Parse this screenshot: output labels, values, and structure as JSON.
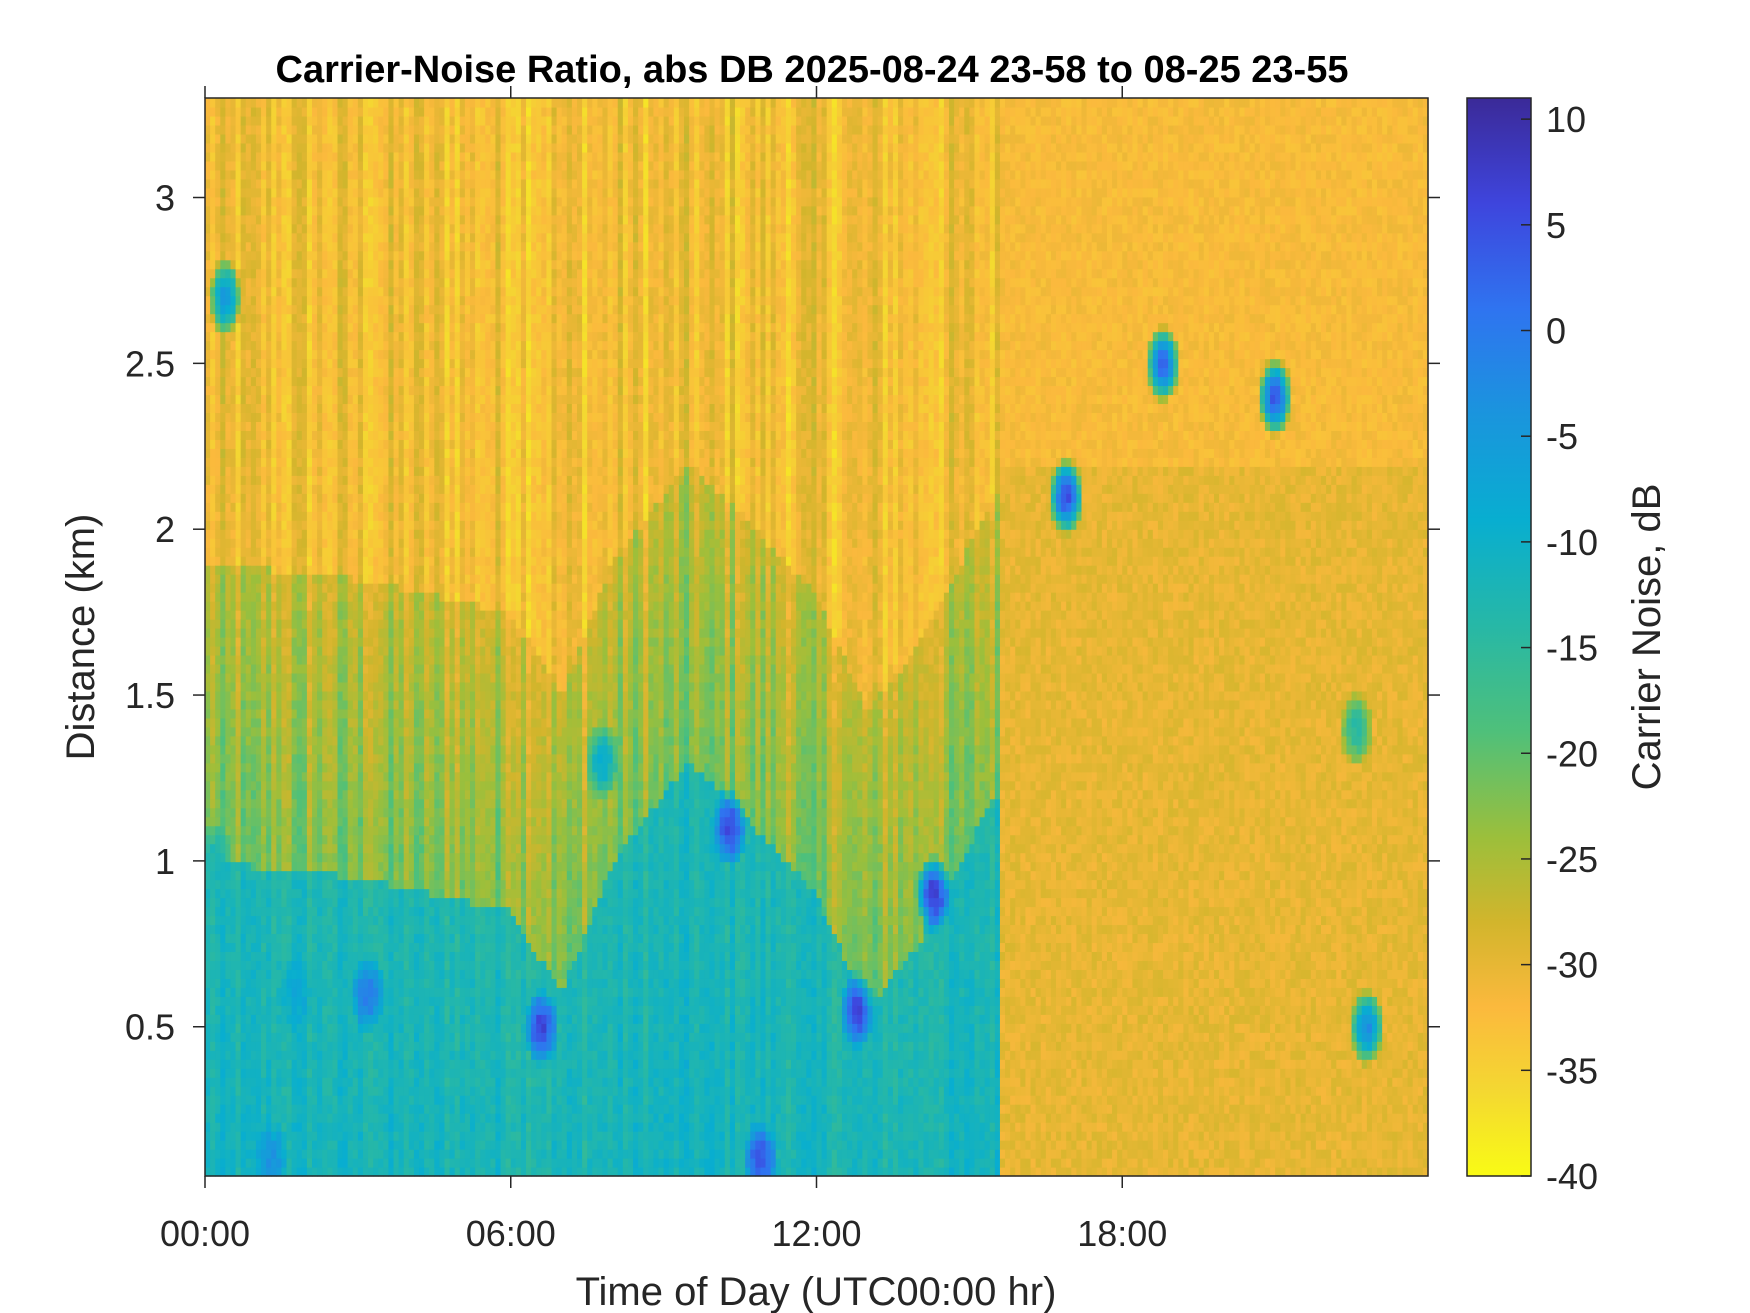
{
  "chart_data": {
    "type": "heatmap",
    "title": "Carrier-Noise Ratio, abs DB 2025-08-24 23-58 to 08-25 23-55",
    "xlabel": "Time of Day (UTC00:00 hr)",
    "ylabel": "Distance (km)",
    "xlim_hours": [
      0,
      24
    ],
    "ylim_km": [
      0.05,
      3.3
    ],
    "x_ticks": [
      {
        "hours": 0,
        "label": "00:00"
      },
      {
        "hours": 6,
        "label": "06:00"
      },
      {
        "hours": 12,
        "label": "12:00"
      },
      {
        "hours": 18,
        "label": "18:00"
      }
    ],
    "y_ticks": [
      {
        "km": 0.5,
        "label": "0.5"
      },
      {
        "km": 1,
        "label": "1"
      },
      {
        "km": 1.5,
        "label": "1.5"
      },
      {
        "km": 2,
        "label": "2"
      },
      {
        "km": 2.5,
        "label": "2.5"
      },
      {
        "km": 3,
        "label": "3"
      }
    ],
    "colorbar": {
      "label": "Carrier Noise, dB",
      "range": [
        -40,
        11
      ],
      "ticks": [
        {
          "value": 10,
          "label": "10"
        },
        {
          "value": 5,
          "label": "5"
        },
        {
          "value": 0,
          "label": "0"
        },
        {
          "value": -5,
          "label": "-5"
        },
        {
          "value": -10,
          "label": "-10"
        },
        {
          "value": -15,
          "label": "-15"
        },
        {
          "value": -20,
          "label": "-20"
        },
        {
          "value": -25,
          "label": "-25"
        },
        {
          "value": -30,
          "label": "-30"
        },
        {
          "value": -35,
          "label": "-35"
        },
        {
          "value": -40,
          "label": "-40"
        }
      ],
      "colormap": "parula-reversed",
      "stops": [
        {
          "value": 11,
          "color": "#3b2a98"
        },
        {
          "value": 6,
          "color": "#3e45dd"
        },
        {
          "value": 1,
          "color": "#2f74f0"
        },
        {
          "value": -4,
          "color": "#1a95dd"
        },
        {
          "value": -9,
          "color": "#08aed0"
        },
        {
          "value": -14,
          "color": "#27b8a6"
        },
        {
          "value": -19,
          "color": "#4fc07a"
        },
        {
          "value": -24,
          "color": "#9cbf3b"
        },
        {
          "value": -28,
          "color": "#d2b52c"
        },
        {
          "value": -32,
          "color": "#fbb93d"
        },
        {
          "value": -36,
          "color": "#f4d831"
        },
        {
          "value": -40,
          "color": "#f9fb15"
        }
      ]
    },
    "regions": [
      {
        "hours": [
          0,
          15.6
        ],
        "km": [
          0.05,
          1.0
        ],
        "level_db": -13
      },
      {
        "hours": [
          0,
          15.6
        ],
        "km": [
          1.0,
          2.0
        ],
        "level_db": -22
      },
      {
        "hours": [
          0,
          15.6
        ],
        "km": [
          2.0,
          3.3
        ],
        "level_db": -32
      },
      {
        "hours": [
          15.6,
          24
        ],
        "km": [
          0.05,
          2.2
        ],
        "level_db": -30
      },
      {
        "hours": [
          15.6,
          24
        ],
        "km": [
          2.2,
          3.3
        ],
        "level_db": -32
      }
    ],
    "boundary_layer_top_km": [
      {
        "hours": 0,
        "km": 1.0
      },
      {
        "hours": 3,
        "km": 0.95
      },
      {
        "hours": 6,
        "km": 0.85
      },
      {
        "hours": 7,
        "km": 0.6
      },
      {
        "hours": 8,
        "km": 1.0
      },
      {
        "hours": 9.5,
        "km": 1.3
      },
      {
        "hours": 10.5,
        "km": 1.15
      },
      {
        "hours": 12,
        "km": 0.9
      },
      {
        "hours": 13,
        "km": 0.55
      },
      {
        "hours": 14,
        "km": 0.75
      },
      {
        "hours": 15.5,
        "km": 1.2
      }
    ],
    "strong_echo_patches": [
      {
        "hours": 0.4,
        "km": 2.7,
        "level_db": -5
      },
      {
        "hours": 0.2,
        "km": 1.0,
        "level_db": -12
      },
      {
        "hours": 1.8,
        "km": 0.6,
        "level_db": -8
      },
      {
        "hours": 3.2,
        "km": 0.6,
        "level_db": 0
      },
      {
        "hours": 6.6,
        "km": 0.5,
        "level_db": 6
      },
      {
        "hours": 7.8,
        "km": 1.3,
        "level_db": -9
      },
      {
        "hours": 10.3,
        "km": 1.1,
        "level_db": 6
      },
      {
        "hours": 10.9,
        "km": 0.1,
        "level_db": 4
      },
      {
        "hours": 12.8,
        "km": 0.55,
        "level_db": 6
      },
      {
        "hours": 14.3,
        "km": 0.9,
        "level_db": 8
      },
      {
        "hours": 1.3,
        "km": 0.1,
        "level_db": -4
      },
      {
        "hours": 16.9,
        "km": 2.1,
        "level_db": 5
      },
      {
        "hours": 18.8,
        "km": 2.5,
        "level_db": 2
      },
      {
        "hours": 21.0,
        "km": 2.4,
        "level_db": 4
      },
      {
        "hours": 22.8,
        "km": 0.5,
        "level_db": -3
      },
      {
        "hours": 22.6,
        "km": 1.4,
        "level_db": -14
      }
    ]
  }
}
